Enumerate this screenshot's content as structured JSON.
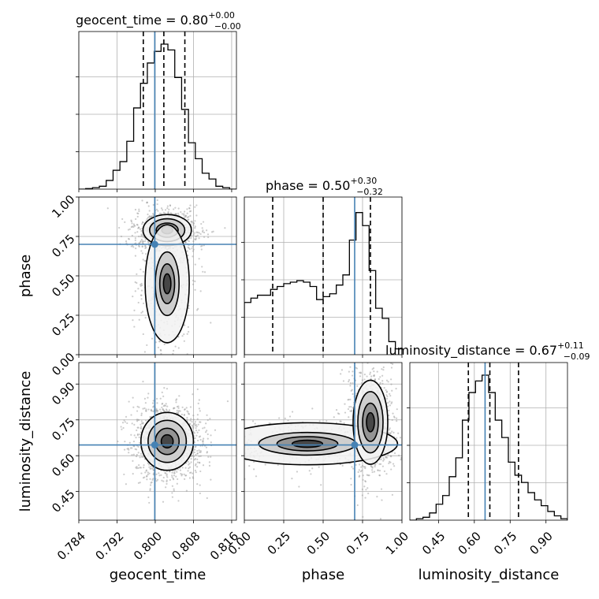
{
  "chart_data": {
    "type": "corner",
    "parameters": [
      "geocent_time",
      "phase",
      "luminosity_distance"
    ],
    "truths": {
      "geocent_time": 0.7999,
      "phase": 0.7,
      "luminosity_distance": 0.645
    },
    "titles": [
      {
        "param": "geocent_time",
        "median": "0.80",
        "plus": "+0.00",
        "minus": "−0.00"
      },
      {
        "param": "phase",
        "median": "0.50",
        "plus": "+0.30",
        "minus": "−0.32"
      },
      {
        "param": "luminosity_distance",
        "median": "0.67",
        "plus": "+0.11",
        "minus": "−0.09"
      }
    ],
    "axes": {
      "geocent_time": {
        "range": [
          0.784,
          0.817
        ],
        "ticks": [
          0.784,
          0.792,
          0.8,
          0.808,
          0.816
        ],
        "tick_labels": [
          "0.784",
          "0.792",
          "0.800",
          "0.808",
          "0.816"
        ]
      },
      "phase": {
        "range": [
          0.0,
          1.0
        ],
        "ticks": [
          0.0,
          0.25,
          0.5,
          0.75,
          1.0
        ],
        "tick_labels": [
          "0.00",
          "0.25",
          "0.50",
          "0.75",
          "1.00"
        ]
      },
      "luminosity_distance": {
        "range": [
          0.33,
          0.99
        ],
        "ticks": [
          0.45,
          0.6,
          0.75,
          0.9
        ],
        "tick_labels": [
          "0.45",
          "0.60",
          "0.75",
          "0.90"
        ]
      }
    },
    "histograms": {
      "geocent_time": {
        "quantiles": [
          0.7975,
          0.8018,
          0.8062
        ],
        "values": [
          0.0,
          0.004,
          0.01,
          0.02,
          0.06,
          0.13,
          0.19,
          0.33,
          0.56,
          0.73,
          0.87,
          0.95,
          1.0,
          0.96,
          0.77,
          0.55,
          0.32,
          0.21,
          0.11,
          0.07,
          0.02,
          0.01,
          0.0
        ]
      },
      "phase": {
        "quantiles": [
          0.18,
          0.5,
          0.8
        ],
        "values": [
          0.36,
          0.39,
          0.41,
          0.41,
          0.45,
          0.47,
          0.49,
          0.5,
          0.51,
          0.5,
          0.47,
          0.38,
          0.4,
          0.42,
          0.48,
          0.55,
          0.79,
          0.98,
          0.89,
          0.58,
          0.32,
          0.25,
          0.09,
          0.04
        ]
      },
      "luminosity_distance": {
        "quantiles": [
          0.575,
          0.665,
          0.785
        ],
        "values": [
          0.0,
          0.01,
          0.02,
          0.05,
          0.11,
          0.17,
          0.3,
          0.43,
          0.69,
          0.88,
          0.96,
          1.0,
          0.88,
          0.69,
          0.57,
          0.4,
          0.31,
          0.26,
          0.19,
          0.14,
          0.1,
          0.06,
          0.03,
          0.01
        ]
      }
    },
    "joint": [
      {
        "x": "geocent_time",
        "y": "phase",
        "components": [
          {
            "cx": 0.8025,
            "cy": 0.79,
            "sx": 0.0023,
            "sy": 0.045,
            "w": 1.0
          },
          {
            "cx": 0.8025,
            "cy": 0.45,
            "sx": 0.0021,
            "sy": 0.17,
            "w": 0.55
          }
        ]
      },
      {
        "x": "geocent_time",
        "y": "luminosity_distance",
        "components": [
          {
            "cx": 0.8025,
            "cy": 0.66,
            "sx": 0.0025,
            "sy": 0.055,
            "w": 1.0
          }
        ]
      },
      {
        "x": "phase",
        "y": "luminosity_distance",
        "components": [
          {
            "cx": 0.4,
            "cy": 0.65,
            "sx": 0.26,
            "sy": 0.04,
            "w": 0.55
          },
          {
            "cx": 0.8,
            "cy": 0.74,
            "sx": 0.05,
            "sy": 0.08,
            "w": 1.0
          }
        ]
      }
    ],
    "colors": {
      "truth": "#4682b4",
      "hist": "#000000",
      "grid": "#b0b0b0",
      "points": "#9a9a9a"
    }
  }
}
